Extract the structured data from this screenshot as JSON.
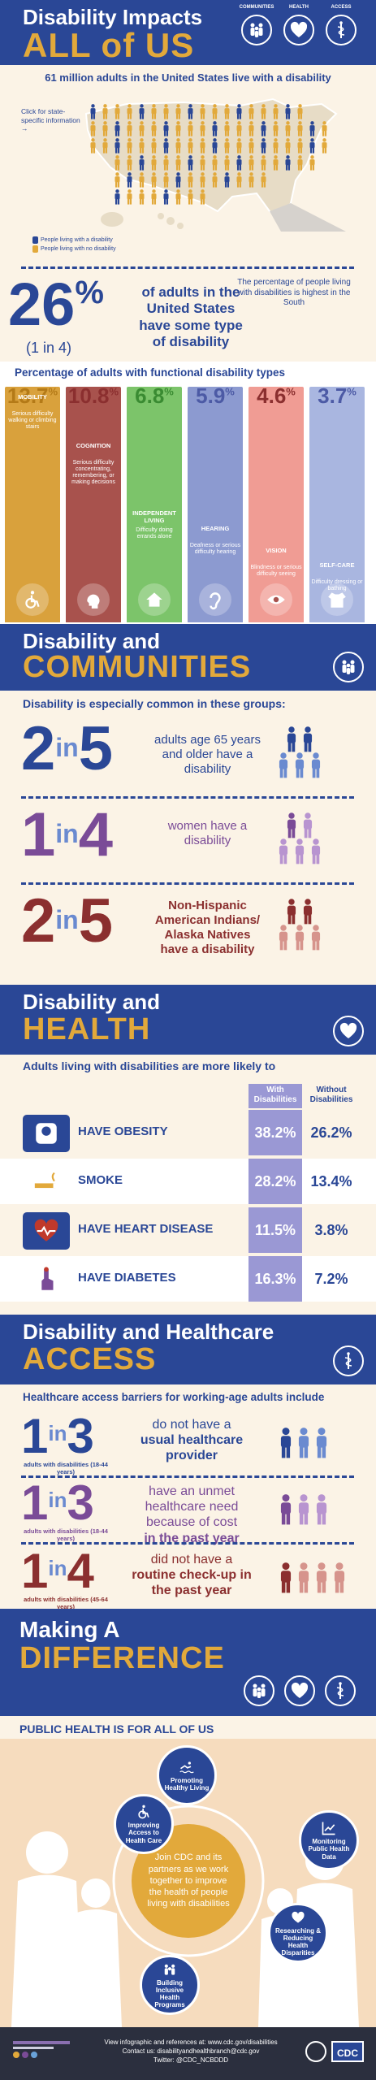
{
  "header": {
    "title_line1": "Disability Impacts",
    "title_line2": "ALL of US",
    "icons": [
      {
        "label": "COMMUNITIES",
        "icon": "people-icon"
      },
      {
        "label": "HEALTH",
        "icon": "heart-icon"
      },
      {
        "label": "ACCESS",
        "icon": "caduceus-icon"
      }
    ]
  },
  "intro": {
    "headline": "61 million adults in the United States live with a disability",
    "map_click_note": "Click for state-specific information →",
    "legend_disability": "People living with a disability",
    "legend_no_disability": "People living with no disability",
    "south_note": "The percentage of people living with disabilities is highest in the South",
    "big_pct": "26",
    "pct_sign": "%",
    "one_in_four": "(1 in 4)",
    "big_pct_text": "of adults in the United States have some type of disability"
  },
  "functional": {
    "heading": "Percentage of adults with functional disability types",
    "colors": [
      "#d9a13c",
      "#a8524d",
      "#7cc46a",
      "#8c9ad0",
      "#f09c94",
      "#a9b6e0"
    ]
  },
  "chart_data": {
    "type": "bar",
    "title": "Percentage of adults with functional disability types",
    "categories": [
      "MOBILITY",
      "COGNITION",
      "INDEPENDENT LIVING",
      "HEARING",
      "VISION",
      "SELF-CARE"
    ],
    "values": [
      13.7,
      10.8,
      6.8,
      5.9,
      4.6,
      3.7
    ],
    "value_labels": [
      "13.7",
      "10.8",
      "6.8",
      "5.9",
      "4.6",
      "3.7"
    ],
    "descriptions": [
      "Serious difficulty walking or climbing stairs",
      "Serious difficulty concentrating, remembering, or making decisions",
      "Difficulty doing errands alone",
      "Deafness or serious difficulty hearing",
      "Blindness or serious difficulty seeing",
      "Difficulty dressing or bathing"
    ],
    "unit": "%"
  },
  "communities": {
    "title_line1": "Disability and",
    "title_line2": "COMMUNITIES",
    "subheading": "Disability is especially common in these groups:",
    "groups": [
      {
        "num": "2",
        "in": "in",
        "den": "5",
        "text": "adults age 65 years and older have a disability",
        "color": "#2a4796"
      },
      {
        "num": "1",
        "in": "in",
        "den": "4",
        "text": "women have a disability",
        "color": "#7a4b97"
      },
      {
        "num": "2",
        "in": "in",
        "den": "5",
        "text": "Non-Hispanic American Indians/ Alaska Natives have a disability",
        "color": "#8b2f2f"
      }
    ]
  },
  "health": {
    "title_line1": "Disability and",
    "title_line2": "HEALTH",
    "subheading": "Adults living with disabilities are more likely to",
    "col_with": "With Disabilities",
    "col_without": "Without Disabilities",
    "rows": [
      {
        "label": "HAVE OBESITY",
        "with": "38.2%",
        "without": "26.2%",
        "icon": "scale-icon"
      },
      {
        "label": "SMOKE",
        "with": "28.2%",
        "without": "13.4%",
        "icon": "cigarette-icon"
      },
      {
        "label": "HAVE HEART DISEASE",
        "with": "11.5%",
        "without": "3.8%",
        "icon": "heartbeat-icon"
      },
      {
        "label": "HAVE DIABETES",
        "with": "16.3%",
        "without": "7.2%",
        "icon": "finger-prick-icon"
      }
    ]
  },
  "access": {
    "title_line1": "Disability and Healthcare",
    "title_line2": "ACCESS",
    "subheading": "Healthcare access barriers for working-age adults include",
    "items": [
      {
        "num": "1",
        "in": "in",
        "den": "3",
        "age": "adults with disabilities (18-44 years)",
        "line1": "do not have a",
        "line2": "usual healthcare provider",
        "color": "#2a4796"
      },
      {
        "num": "1",
        "in": "in",
        "den": "3",
        "age": "adults with disabilities (18-44 years)",
        "line1": "have an unmet healthcare need because of cost",
        "line2": "in the past year",
        "color": "#7a4b97"
      },
      {
        "num": "1",
        "in": "in",
        "den": "4",
        "age": "adults with disabilities (45-64 years)",
        "line1": "did not have a",
        "line2": "routine check-up in the past year",
        "color": "#8b2f2f"
      }
    ]
  },
  "difference": {
    "title_line1": "Making A",
    "title_line2": "DIFFERENCE",
    "subheading": "PUBLIC HEALTH IS FOR ALL OF US",
    "center_text": "Join CDC and its partners as we work together to improve the health of people living with disabilities",
    "nodes": [
      "Promoting Healthy Living",
      "Monitoring Public Health Data",
      "Researching & Reducing Health Disparities",
      "Building Inclusive Health Programs",
      "Improving Access to Health Care"
    ]
  },
  "footer": {
    "line1": "View infographic and references at: www.cdc.gov/disabilities",
    "line2": "Contact us: disabilityandhealthbranch@cdc.gov",
    "line3": "Twitter: @CDC_NCBDDD",
    "logo": "CDC"
  }
}
